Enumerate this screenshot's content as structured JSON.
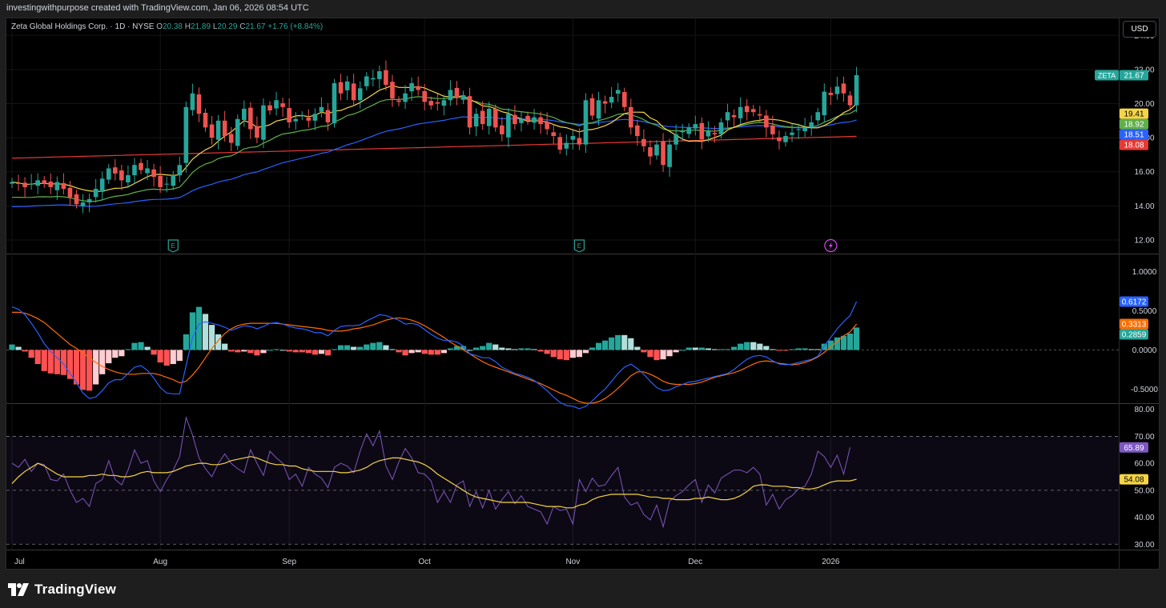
{
  "attribution": "investingwithpurpose created with TradingView.com, Jan 06, 2026 08:54 UTC",
  "legend": {
    "symbol": "Zeta Global Holdings Corp. · 1D · NYSE",
    "open_label": "O",
    "open": "20.38",
    "high_label": "H",
    "high": "21.89",
    "low_label": "L",
    "low": "20.29",
    "close_label": "C",
    "close": "21.67",
    "change": "+1.76 (+8.84%)"
  },
  "currency_button": "USD",
  "brand": {
    "name": "TradingView",
    "icon": "tradingview-logo-icon"
  },
  "colors": {
    "up": "#26a69a",
    "down": "#ef5350",
    "ma_yellow": "#f5d547",
    "ma_green": "#5fb04a",
    "ma_blue": "#2962ff",
    "ma_red": "#e53935",
    "macd": "#2962ff",
    "signal": "#ff6d00",
    "hist_up_strong": "#26a69a",
    "hist_up_weak": "#b2dfdb",
    "hist_down_strong": "#ff5252",
    "hist_down_weak": "#ffcdd2",
    "rsi": "#7e57c2",
    "rsi_ma": "#f5d547",
    "rsi_band": "#7e57c2"
  },
  "chart_data": [
    {
      "type": "candlestick",
      "title": "Zeta Global Holdings Corp. · 1D · NYSE",
      "ylim": [
        11.2,
        25.0
      ],
      "y_ticks": [
        "24.00",
        "22.00",
        "20.00",
        "18.00",
        "16.00",
        "14.00",
        "12.00"
      ],
      "x_tick_labels": [
        {
          "label": "Jul",
          "index": 0
        },
        {
          "label": "Aug",
          "index": 23
        },
        {
          "label": "Sep",
          "index": 43
        },
        {
          "label": "Oct",
          "index": 64
        },
        {
          "label": "Nov",
          "index": 87
        },
        {
          "label": "Dec",
          "index": 106
        },
        {
          "label": "2026",
          "index": 127
        }
      ],
      "earnings_markers": [
        {
          "index": 25,
          "icon": "earnings-icon",
          "label": "E"
        },
        {
          "index": 88,
          "icon": "earnings-icon",
          "label": "E"
        }
      ],
      "event_markers": [
        {
          "index": 127,
          "icon": "lightning-icon"
        }
      ],
      "close": [
        15.4,
        15.3,
        15.1,
        15.3,
        15.5,
        15.3,
        15.1,
        15.4,
        15.0,
        14.5,
        14.1,
        14.2,
        14.4,
        15.0,
        15.6,
        16.2,
        15.9,
        15.5,
        15.8,
        16.4,
        16.1,
        16.2,
        15.7,
        15.1,
        15.3,
        15.8,
        16.4,
        19.8,
        20.6,
        19.4,
        18.6,
        18.0,
        19.0,
        18.1,
        17.7,
        19.1,
        19.7,
        18.5,
        18.0,
        19.9,
        19.6,
        20.2,
        19.8,
        18.9,
        19.1,
        19.3,
        19.0,
        19.4,
        19.8,
        18.9,
        21.2,
        20.6,
        21.3,
        20.2,
        20.9,
        21.6,
        21.5,
        21.9,
        21.1,
        20.3,
        20.1,
        20.6,
        21.2,
        20.8,
        20.1,
        19.9,
        20.0,
        20.2,
        20.8,
        20.4,
        20.5,
        18.6,
        19.4,
        18.8,
        19.7,
        18.6,
        18.2,
        19.4,
        18.8,
        19.1,
        19.0,
        19.2,
        18.8,
        18.5,
        18.1,
        17.3,
        17.7,
        18.1,
        17.6,
        20.2,
        19.3,
        20.2,
        20.0,
        20.4,
        20.8,
        19.8,
        18.6,
        18.1,
        17.5,
        16.9,
        17.6,
        16.4,
        17.6,
        18.2,
        18.4,
        18.6,
        18.8,
        17.9,
        18.4,
        18.2,
        18.9,
        19.5,
        19.2,
        19.8,
        19.5,
        19.5,
        19.3,
        18.6,
        18.2,
        17.8,
        18.1,
        18.3,
        18.5,
        18.6,
        18.9,
        19.5,
        20.7,
        20.5,
        21.0,
        20.6,
        19.9,
        21.67
      ],
      "series": [
        {
          "name": "MA 10",
          "color": "#f5d547"
        },
        {
          "name": "MA 20",
          "color": "#5fb04a"
        },
        {
          "name": "MA 50",
          "color": "#2962ff"
        },
        {
          "name": "MA 200",
          "color": "#e53935",
          "start": 16.8,
          "end": 18.08
        }
      ],
      "price_labels": [
        {
          "text": "ZETA",
          "value": "21.67",
          "color": "#26a69a",
          "at": 21.67
        },
        {
          "value": "19.41",
          "color": "#f5d547",
          "at": 19.41
        },
        {
          "value": "18.92",
          "color": "#5fb04a",
          "at": 18.92
        },
        {
          "value": "18.51",
          "color": "#2962ff",
          "at": 18.51
        },
        {
          "value": "18.08",
          "color": "#e53935",
          "at": 18.08
        }
      ]
    },
    {
      "type": "macd",
      "ylim": [
        -0.68,
        1.22
      ],
      "y_ticks": [
        "1.0000",
        "0.5000",
        "0.0000",
        "-0.5000"
      ],
      "macd": [
        0.55,
        0.52,
        0.45,
        0.34,
        0.22,
        0.08,
        -0.02,
        -0.1,
        -0.18,
        -0.3,
        -0.42,
        -0.55,
        -0.62,
        -0.6,
        -0.52,
        -0.42,
        -0.38,
        -0.38,
        -0.3,
        -0.22,
        -0.2,
        -0.26,
        -0.36,
        -0.48,
        -0.55,
        -0.56,
        -0.56,
        -0.2,
        0.16,
        0.33,
        0.36,
        0.34,
        0.32,
        0.29,
        0.25,
        0.28,
        0.31,
        0.3,
        0.27,
        0.3,
        0.34,
        0.35,
        0.33,
        0.3,
        0.28,
        0.27,
        0.25,
        0.22,
        0.22,
        0.18,
        0.25,
        0.3,
        0.31,
        0.31,
        0.32,
        0.37,
        0.41,
        0.45,
        0.44,
        0.41,
        0.38,
        0.33,
        0.34,
        0.32,
        0.26,
        0.2,
        0.15,
        0.12,
        0.12,
        0.1,
        0.05,
        -0.05,
        -0.07,
        -0.1,
        -0.1,
        -0.15,
        -0.22,
        -0.26,
        -0.3,
        -0.32,
        -0.35,
        -0.39,
        -0.45,
        -0.52,
        -0.6,
        -0.67,
        -0.71,
        -0.72,
        -0.75,
        -0.72,
        -0.65,
        -0.57,
        -0.5,
        -0.4,
        -0.3,
        -0.22,
        -0.18,
        -0.24,
        -0.31,
        -0.4,
        -0.48,
        -0.52,
        -0.51,
        -0.47,
        -0.44,
        -0.41,
        -0.4,
        -0.38,
        -0.36,
        -0.34,
        -0.32,
        -0.3,
        -0.25,
        -0.18,
        -0.12,
        -0.08,
        -0.07,
        -0.09,
        -0.14,
        -0.18,
        -0.19,
        -0.18,
        -0.16,
        -0.14,
        -0.12,
        -0.08,
        0.05,
        0.16,
        0.27,
        0.36,
        0.44,
        0.6172
      ],
      "signal": [
        0.48,
        0.48,
        0.47,
        0.44,
        0.4,
        0.35,
        0.28,
        0.21,
        0.14,
        0.07,
        0.02,
        -0.04,
        -0.1,
        -0.16,
        -0.21,
        -0.25,
        -0.28,
        -0.3,
        -0.31,
        -0.31,
        -0.3,
        -0.3,
        -0.3,
        -0.32,
        -0.35,
        -0.38,
        -0.42,
        -0.4,
        -0.32,
        -0.22,
        -0.1,
        0.02,
        0.12,
        0.21,
        0.27,
        0.31,
        0.33,
        0.34,
        0.34,
        0.34,
        0.34,
        0.34,
        0.33,
        0.32,
        0.31,
        0.3,
        0.29,
        0.28,
        0.27,
        0.25,
        0.24,
        0.24,
        0.25,
        0.27,
        0.28,
        0.3,
        0.32,
        0.35,
        0.38,
        0.4,
        0.41,
        0.4,
        0.38,
        0.35,
        0.31,
        0.26,
        0.21,
        0.16,
        0.1,
        0.05,
        0.0,
        -0.05,
        -0.1,
        -0.15,
        -0.19,
        -0.22,
        -0.25,
        -0.28,
        -0.31,
        -0.34,
        -0.37,
        -0.4,
        -0.43,
        -0.47,
        -0.51,
        -0.55,
        -0.58,
        -0.62,
        -0.66,
        -0.68,
        -0.68,
        -0.66,
        -0.62,
        -0.56,
        -0.49,
        -0.41,
        -0.33,
        -0.28,
        -0.28,
        -0.31,
        -0.35,
        -0.4,
        -0.43,
        -0.44,
        -0.44,
        -0.44,
        -0.43,
        -0.41,
        -0.38,
        -0.35,
        -0.33,
        -0.31,
        -0.29,
        -0.26,
        -0.22,
        -0.18,
        -0.15,
        -0.14,
        -0.15,
        -0.17,
        -0.18,
        -0.19,
        -0.18,
        -0.16,
        -0.13,
        -0.09,
        -0.03,
        0.04,
        0.11,
        0.18,
        0.23,
        0.3313
      ],
      "histogram_last": 0.2859,
      "labels": [
        {
          "value": "0.6172",
          "color": "#2962ff"
        },
        {
          "value": "0.3313",
          "color": "#ff6d00"
        },
        {
          "value": "0.2859",
          "color": "#26a69a"
        }
      ]
    },
    {
      "type": "line",
      "name": "RSI",
      "ylim": [
        28,
        82
      ],
      "y_ticks": [
        "80.00",
        "70.00",
        "60.00",
        "50.00",
        "40.00",
        "30.00"
      ],
      "bands": [
        70,
        50,
        30
      ],
      "rsi": [
        60.0,
        58.5,
        61.5,
        57.0,
        60.0,
        59.5,
        54.0,
        53.5,
        56.0,
        50.0,
        45.5,
        47.0,
        44.0,
        52.5,
        54.0,
        61.0,
        54.0,
        52.0,
        57.5,
        65.0,
        60.0,
        61.0,
        53.5,
        49.5,
        54.0,
        57.5,
        62.5,
        77.0,
        70.5,
        62.0,
        58.0,
        55.0,
        60.0,
        63.5,
        60.0,
        58.0,
        56.5,
        65.0,
        60.0,
        55.5,
        64.5,
        62.0,
        60.0,
        54.0,
        56.0,
        51.5,
        58.5,
        56.0,
        54.5,
        51.0,
        58.5,
        60.0,
        59.0,
        56.5,
        64.5,
        71.0,
        66.5,
        72.0,
        59.0,
        54.0,
        60.5,
        65.5,
        62.0,
        56.5,
        56.0,
        53.5,
        45.5,
        49.5,
        45.5,
        52.0,
        53.5,
        44.0,
        49.5,
        43.5,
        50.0,
        43.0,
        46.5,
        49.5,
        45.0,
        48.0,
        44.0,
        43.0,
        42.0,
        37.5,
        44.0,
        42.5,
        43.0,
        37.5,
        54.0,
        49.5,
        54.5,
        51.5,
        52.0,
        55.5,
        58.5,
        47.5,
        44.5,
        45.5,
        41.0,
        39.0,
        44.5,
        36.5,
        46.0,
        48.0,
        49.5,
        52.0,
        54.0,
        45.5,
        52.0,
        49.0,
        54.5,
        56.0,
        57.5,
        57.5,
        56.5,
        58.5,
        56.0,
        44.5,
        48.5,
        43.0,
        46.5,
        48.0,
        50.5,
        51.5,
        56.0,
        64.5,
        62.5,
        58.5,
        63.0,
        56.0,
        65.89
      ],
      "rsi_ma": [
        52.5,
        55.0,
        57.0,
        58.5,
        60.0,
        59.0,
        57.5,
        56.0,
        55.0,
        55.0,
        55.0,
        55.0,
        55.5,
        55.5,
        56.0,
        55.5,
        55.5,
        55.0,
        55.0,
        55.5,
        56.5,
        57.0,
        56.5,
        56.5,
        56.5,
        57.0,
        58.0,
        59.0,
        59.5,
        60.0,
        60.0,
        59.5,
        59.5,
        60.0,
        61.0,
        61.5,
        62.0,
        62.5,
        62.0,
        61.0,
        60.0,
        59.5,
        59.5,
        59.0,
        59.0,
        58.0,
        57.5,
        57.0,
        57.0,
        57.0,
        57.0,
        56.5,
        56.5,
        57.0,
        57.5,
        58.5,
        60.0,
        61.0,
        61.5,
        62.0,
        62.0,
        61.5,
        61.0,
        60.5,
        59.5,
        58.0,
        56.0,
        54.5,
        53.0,
        51.5,
        50.0,
        48.5,
        47.5,
        47.0,
        46.5,
        46.0,
        45.5,
        45.5,
        45.5,
        45.5,
        45.5,
        45.0,
        44.5,
        44.0,
        44.0,
        44.0,
        43.5,
        43.5,
        44.5,
        45.0,
        46.5,
        47.5,
        48.0,
        48.5,
        48.5,
        48.5,
        48.5,
        48.5,
        48.0,
        47.5,
        47.5,
        47.0,
        47.0,
        46.5,
        46.5,
        46.5,
        47.0,
        47.0,
        47.5,
        47.0,
        46.5,
        46.5,
        47.0,
        48.0,
        49.5,
        51.5,
        52.0,
        52.0,
        51.5,
        51.5,
        51.5,
        51.0,
        51.0,
        50.5,
        50.5,
        51.0,
        52.0,
        53.0,
        53.5,
        53.5,
        53.5,
        54.08
      ],
      "labels": [
        {
          "value": "65.89",
          "color": "#7e57c2"
        },
        {
          "value": "54.08",
          "color": "#f5d547"
        }
      ]
    }
  ]
}
